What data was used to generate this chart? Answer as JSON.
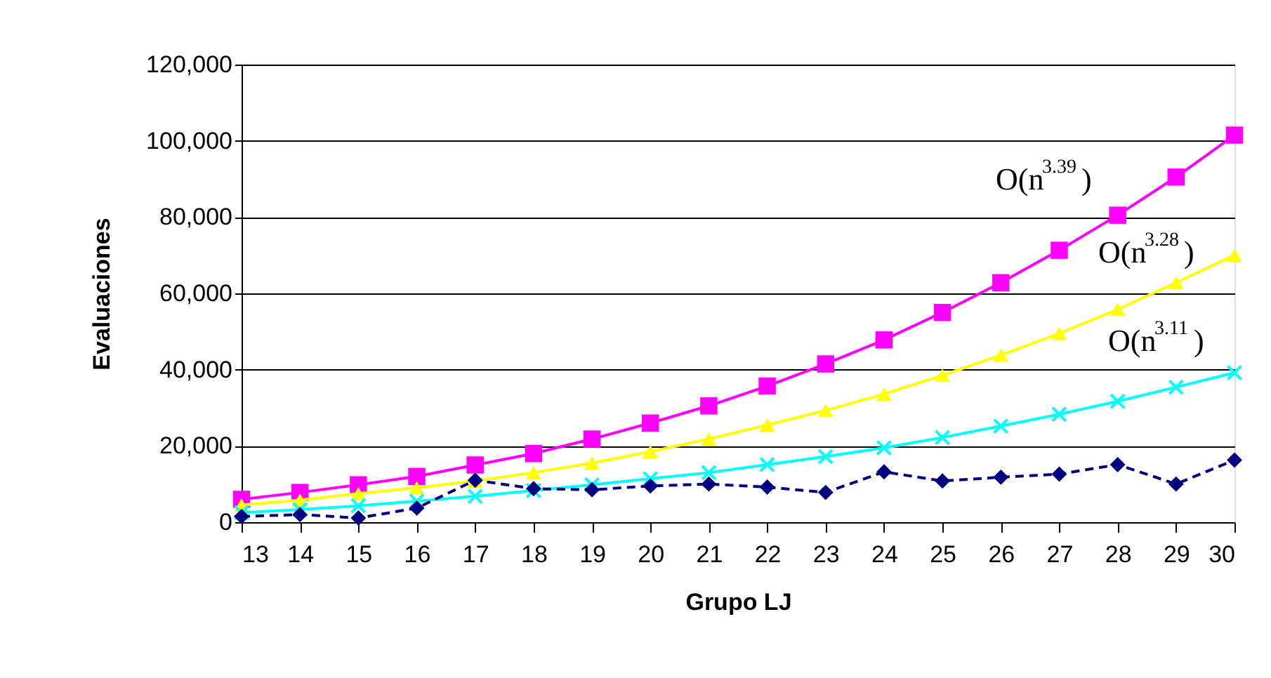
{
  "chart_data": {
    "type": "line",
    "xlabel": "Grupo LJ",
    "ylabel": "Evaluaciones",
    "x": [
      13,
      14,
      15,
      16,
      17,
      18,
      19,
      20,
      21,
      22,
      23,
      24,
      25,
      26,
      27,
      28,
      29,
      30
    ],
    "series": [
      {
        "color": "#ff00ff",
        "marker": "square",
        "line_style": "solid",
        "values": [
          6000,
          7800,
          9800,
          12000,
          15000,
          18000,
          21800,
          26000,
          30500,
          35700,
          41500,
          47800,
          55000,
          62800,
          71300,
          80500,
          90500,
          101500
        ]
      },
      {
        "color": "#ffff00",
        "marker": "triangle",
        "line_style": "solid",
        "values": [
          4500,
          5800,
          7500,
          9000,
          10800,
          13000,
          15500,
          18500,
          21800,
          25500,
          29300,
          33600,
          38500,
          43800,
          49500,
          55800,
          62800,
          70000
        ]
      },
      {
        "color": "#00ffff",
        "marker": "cross",
        "line_style": "solid",
        "values": [
          2500,
          3300,
          4300,
          5500,
          6800,
          8300,
          9800,
          11400,
          13000,
          15100,
          17200,
          19500,
          22200,
          25200,
          28300,
          31700,
          35400,
          39200
        ]
      },
      {
        "color": "#000080",
        "marker": "diamond",
        "line_style": "dashed",
        "values": [
          1500,
          2000,
          1100,
          3700,
          11000,
          8800,
          8500,
          9500,
          10000,
          9200,
          7800,
          13200,
          10800,
          11800,
          12600,
          15100,
          10000,
          16300
        ]
      }
    ],
    "xlim": [
      13,
      30
    ],
    "xticks": [
      13,
      14,
      15,
      16,
      17,
      18,
      19,
      20,
      21,
      22,
      23,
      24,
      25,
      26,
      27,
      28,
      29,
      30
    ],
    "ylim": [
      0,
      120000
    ],
    "yticks": [
      {
        "value": 0,
        "label": "0"
      },
      {
        "value": 20000,
        "label": "20,000"
      },
      {
        "value": 40000,
        "label": "40,000"
      },
      {
        "value": 60000,
        "label": "60,000"
      },
      {
        "value": 80000,
        "label": "80,000"
      },
      {
        "value": 100000,
        "label": "100,000"
      },
      {
        "value": 120000,
        "label": "120,000"
      }
    ],
    "grid": "y",
    "annotations": [
      "O(n$^{3.39}$)",
      "O(n$^{3.28}$)",
      "O(n$^{3.11}$)"
    ]
  }
}
